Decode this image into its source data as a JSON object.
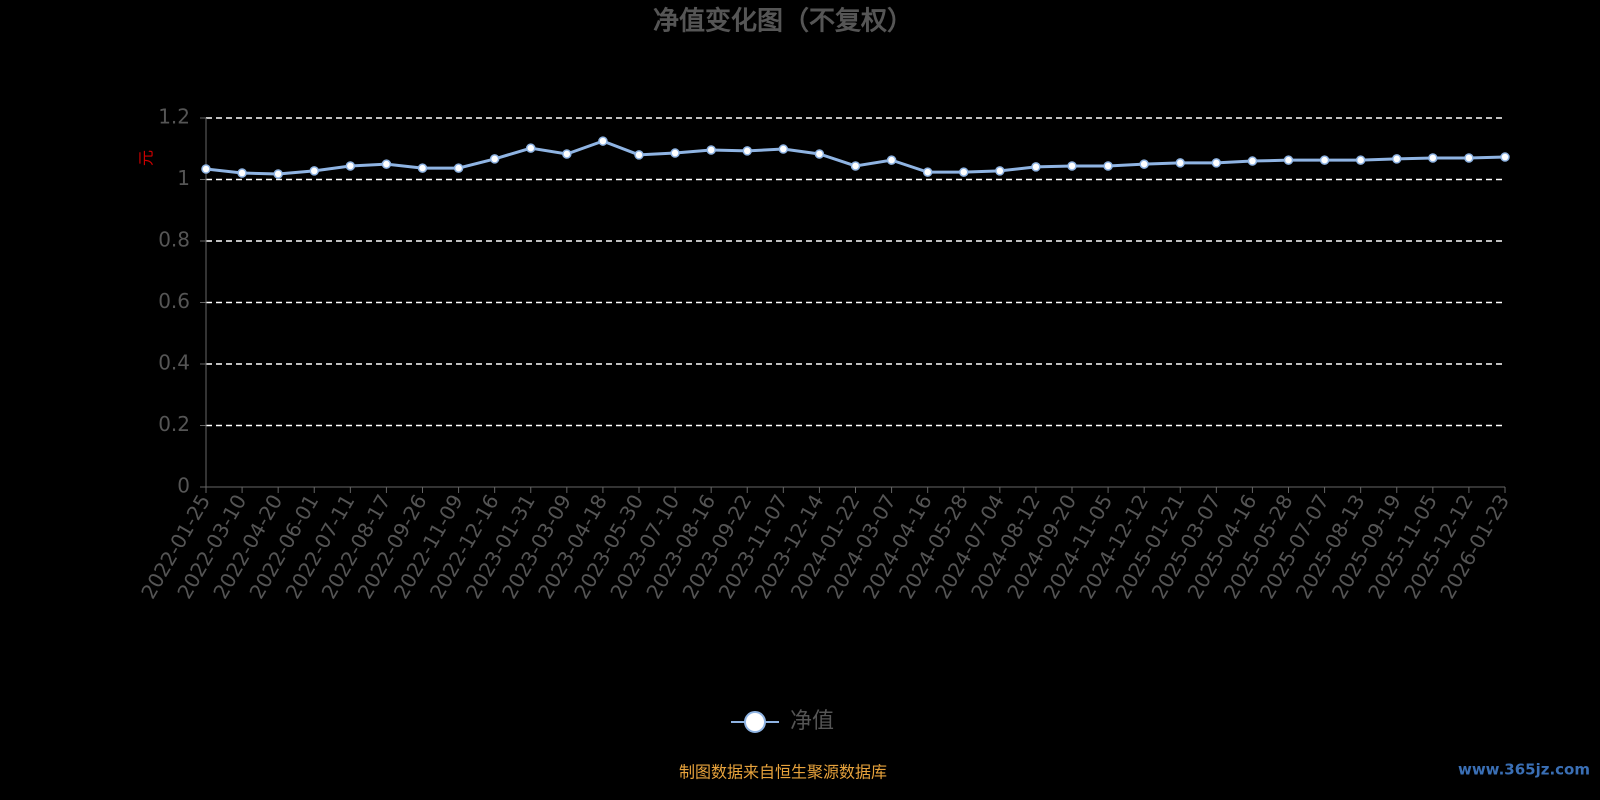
{
  "chart_data": {
    "type": "line",
    "title": "净值变化图（不复权）",
    "y_axis_label": "元",
    "categories": [
      "2022-01-25",
      "2022-03-10",
      "2022-04-20",
      "2022-06-01",
      "2022-07-11",
      "2022-08-17",
      "2022-09-26",
      "2022-11-09",
      "2022-12-16",
      "2023-01-31",
      "2023-03-09",
      "2023-04-18",
      "2023-05-30",
      "2023-07-10",
      "2023-08-16",
      "2023-09-22",
      "2023-11-07",
      "2023-12-14",
      "2024-01-22",
      "2024-03-07",
      "2024-04-16",
      "2024-05-28",
      "2024-07-04",
      "2024-08-12",
      "2024-09-20",
      "2024-11-05",
      "2024-12-12",
      "2025-01-21",
      "2025-03-07",
      "2025-04-16",
      "2025-05-28",
      "2025-07-07",
      "2025-08-13",
      "2025-09-19",
      "2025-11-05",
      "2025-12-12",
      "2026-01-23"
    ],
    "series": [
      {
        "name": "净值",
        "color": "#8fb4e3",
        "values": [
          1.034,
          1.021,
          1.018,
          1.028,
          1.044,
          1.05,
          1.037,
          1.037,
          1.067,
          1.102,
          1.083,
          1.125,
          1.08,
          1.086,
          1.096,
          1.093,
          1.099,
          1.083,
          1.044,
          1.063,
          1.024,
          1.024,
          1.028,
          1.041,
          1.044,
          1.044,
          1.05,
          1.054,
          1.054,
          1.06,
          1.063,
          1.063,
          1.063,
          1.067,
          1.07,
          1.07,
          1.073
        ]
      }
    ],
    "ylim": [
      0,
      1.2
    ],
    "yticks": [
      0,
      0.2,
      0.4,
      0.6,
      0.8,
      1,
      1.2
    ],
    "grid": true,
    "legend_position": "bottom",
    "source": "制图数据来自恒生聚源数据库",
    "watermark": "www.365jz.com"
  }
}
